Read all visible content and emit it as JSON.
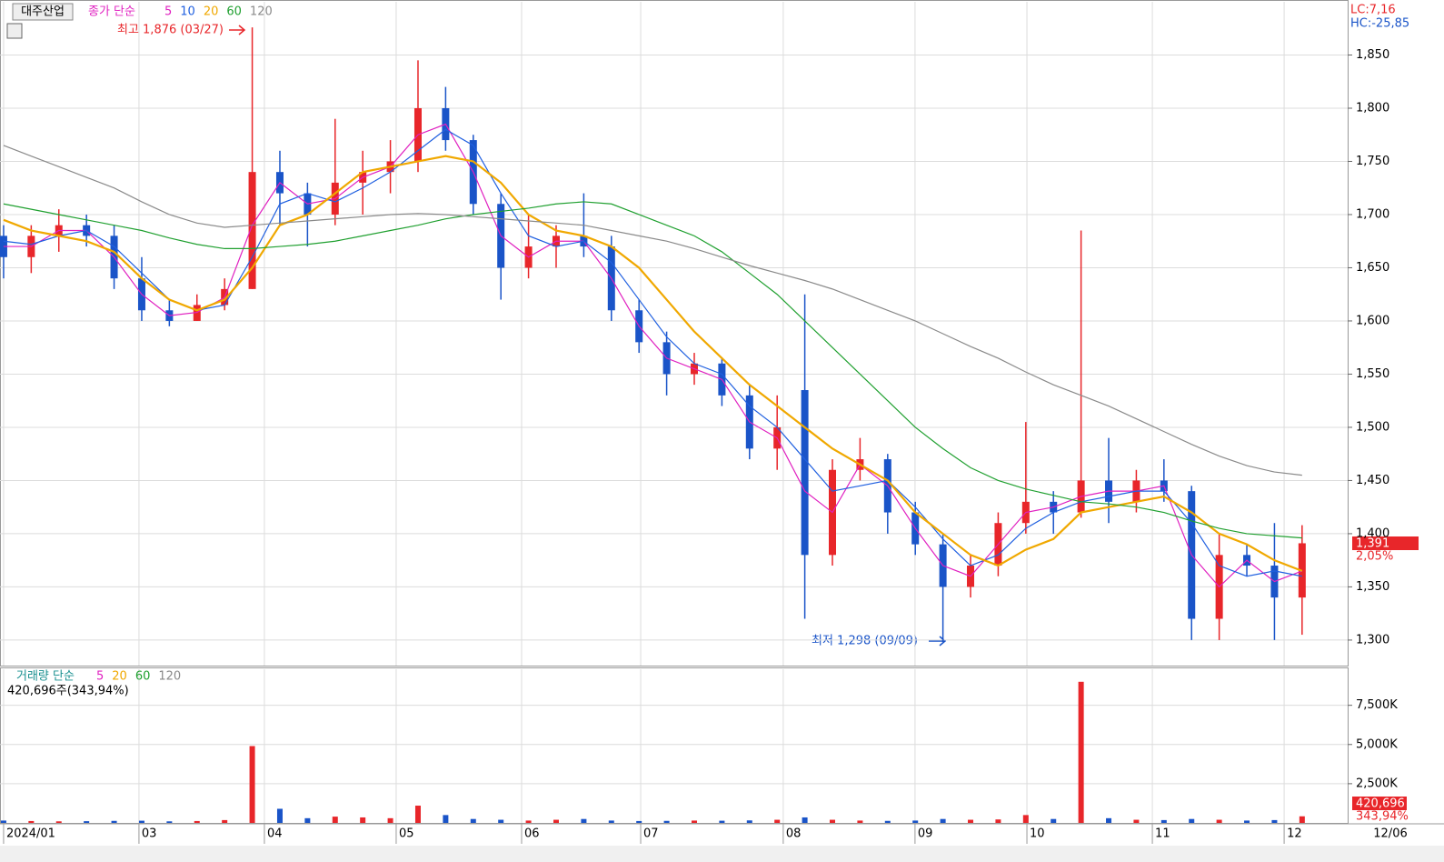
{
  "chart_data": [
    {
      "type": "candlestick",
      "title": "대주산업",
      "legend_prefix": "종가 단순",
      "high_label": "최고 1,876 (03/27)",
      "low_label": "최저 1,298 (09/09)",
      "lc_label": "LC:7,16",
      "hc_label": "HC:-25,85",
      "price_tag": "1,391",
      "change_tag": "2,05%",
      "end_date": "12/06",
      "up_color": "#e8262a",
      "down_color": "#1a54c8",
      "x": [
        0,
        1,
        2,
        3,
        4,
        5,
        6,
        7,
        8,
        9,
        10,
        11,
        12,
        13,
        14,
        15,
        16,
        17,
        18,
        19,
        20,
        21,
        22,
        23,
        24,
        25,
        26,
        27,
        28,
        29,
        30,
        31,
        32,
        33,
        34,
        35,
        36,
        37,
        38,
        39,
        40,
        41,
        42,
        43,
        44,
        45,
        46,
        47
      ],
      "open": [
        1680,
        1660,
        1680,
        1690,
        1680,
        1640,
        1610,
        1600,
        1615,
        1630,
        1740,
        1720,
        1700,
        1730,
        1740,
        1750,
        1800,
        1770,
        1710,
        1650,
        1670,
        1680,
        1670,
        1610,
        1580,
        1550,
        1560,
        1530,
        1480,
        1535,
        1380,
        1460,
        1470,
        1420,
        1390,
        1350,
        1370,
        1410,
        1430,
        1420,
        1450,
        1430,
        1450,
        1440,
        1320,
        1380,
        1370,
        1340
      ],
      "high": [
        1690,
        1690,
        1705,
        1700,
        1690,
        1660,
        1620,
        1625,
        1640,
        1876,
        1760,
        1730,
        1790,
        1760,
        1770,
        1845,
        1820,
        1775,
        1720,
        1700,
        1690,
        1720,
        1680,
        1620,
        1590,
        1570,
        1565,
        1540,
        1530,
        1625,
        1470,
        1490,
        1475,
        1430,
        1400,
        1380,
        1420,
        1505,
        1440,
        1685,
        1490,
        1460,
        1470,
        1445,
        1400,
        1390,
        1410,
        1408
      ],
      "low": [
        1640,
        1645,
        1665,
        1670,
        1630,
        1600,
        1595,
        1600,
        1610,
        1630,
        1690,
        1670,
        1690,
        1700,
        1720,
        1740,
        1760,
        1700,
        1620,
        1640,
        1650,
        1660,
        1600,
        1570,
        1530,
        1540,
        1520,
        1470,
        1460,
        1320,
        1370,
        1450,
        1400,
        1380,
        1298,
        1340,
        1360,
        1400,
        1400,
        1415,
        1410,
        1420,
        1430,
        1300,
        1300,
        1360,
        1300,
        1305
      ],
      "close": [
        1660,
        1680,
        1690,
        1680,
        1640,
        1610,
        1600,
        1615,
        1630,
        1740,
        1720,
        1700,
        1730,
        1740,
        1750,
        1800,
        1770,
        1710,
        1650,
        1670,
        1680,
        1670,
        1610,
        1580,
        1550,
        1560,
        1530,
        1480,
        1500,
        1380,
        1460,
        1470,
        1420,
        1390,
        1350,
        1370,
        1410,
        1430,
        1420,
        1450,
        1430,
        1450,
        1440,
        1320,
        1380,
        1370,
        1340,
        1391
      ],
      "series": [
        {
          "name": "5",
          "color": "#e020c0",
          "values": [
            1670,
            1670,
            1685,
            1685,
            1660,
            1625,
            1605,
            1608,
            1622,
            1690,
            1730,
            1710,
            1715,
            1735,
            1745,
            1775,
            1785,
            1740,
            1680,
            1660,
            1675,
            1675,
            1640,
            1595,
            1565,
            1555,
            1545,
            1505,
            1490,
            1440,
            1420,
            1465,
            1445,
            1405,
            1370,
            1360,
            1390,
            1420,
            1425,
            1435,
            1440,
            1440,
            1445,
            1380,
            1350,
            1375,
            1355,
            1365
          ]
        },
        {
          "name": "10",
          "color": "#2060e0",
          "values": [
            1675,
            1672,
            1680,
            1685,
            1670,
            1645,
            1620,
            1610,
            1615,
            1660,
            1710,
            1720,
            1712,
            1725,
            1740,
            1760,
            1780,
            1765,
            1720,
            1680,
            1670,
            1675,
            1655,
            1620,
            1585,
            1560,
            1550,
            1520,
            1500,
            1470,
            1440,
            1445,
            1450,
            1425,
            1395,
            1370,
            1380,
            1405,
            1420,
            1430,
            1435,
            1440,
            1440,
            1410,
            1370,
            1360,
            1365,
            1360
          ]
        },
        {
          "name": "20",
          "color": "#f0a800",
          "values": [
            1695,
            1685,
            1680,
            1675,
            1665,
            1640,
            1620,
            1610,
            1620,
            1650,
            1690,
            1700,
            1720,
            1740,
            1745,
            1750,
            1755,
            1750,
            1730,
            1700,
            1685,
            1680,
            1670,
            1650,
            1620,
            1590,
            1565,
            1540,
            1520,
            1500,
            1480,
            1465,
            1450,
            1420,
            1400,
            1380,
            1370,
            1385,
            1395,
            1420,
            1425,
            1430,
            1435,
            1420,
            1400,
            1390,
            1375,
            1365
          ]
        },
        {
          "name": "60",
          "color": "#20a030",
          "values": [
            1710,
            1705,
            1700,
            1695,
            1690,
            1685,
            1678,
            1672,
            1668,
            1668,
            1670,
            1672,
            1675,
            1680,
            1685,
            1690,
            1696,
            1700,
            1703,
            1706,
            1710,
            1712,
            1710,
            1700,
            1690,
            1680,
            1665,
            1645,
            1625,
            1600,
            1575,
            1550,
            1525,
            1500,
            1480,
            1462,
            1450,
            1442,
            1436,
            1430,
            1428,
            1425,
            1420,
            1412,
            1405,
            1400,
            1398,
            1396
          ]
        },
        {
          "name": "120",
          "color": "#8a8a8a",
          "values": [
            1765,
            1755,
            1745,
            1735,
            1725,
            1712,
            1700,
            1692,
            1688,
            1690,
            1692,
            1694,
            1696,
            1698,
            1700,
            1701,
            1700,
            1698,
            1696,
            1694,
            1692,
            1690,
            1685,
            1680,
            1675,
            1668,
            1660,
            1652,
            1645,
            1638,
            1630,
            1620,
            1610,
            1600,
            1588,
            1576,
            1565,
            1552,
            1540,
            1530,
            1520,
            1508,
            1496,
            1484,
            1473,
            1464,
            1458,
            1455
          ]
        }
      ],
      "xlim": [
        -0.13,
        48.65
      ],
      "xticks": [
        {
          "value": 0,
          "label": "2024/01"
        },
        {
          "value": 4.9,
          "label": "03"
        },
        {
          "value": 9.44,
          "label": "04"
        },
        {
          "value": 14.21,
          "label": "05"
        },
        {
          "value": 18.75,
          "label": "06"
        },
        {
          "value": 23.06,
          "label": "07"
        },
        {
          "value": 28.22,
          "label": "08"
        },
        {
          "value": 32.99,
          "label": "09"
        },
        {
          "value": 37.04,
          "label": "10"
        },
        {
          "value": 41.58,
          "label": "11"
        },
        {
          "value": 46.35,
          "label": "12"
        }
      ],
      "ylim": [
        1276,
        1900
      ],
      "yticks": [
        {
          "value": 1300,
          "label": "1,300"
        },
        {
          "value": 1350,
          "label": "1,350"
        },
        {
          "value": 1400,
          "label": "1,400"
        },
        {
          "value": 1450,
          "label": "1,450"
        },
        {
          "value": 1500,
          "label": "1,500"
        },
        {
          "value": 1550,
          "label": "1,550"
        },
        {
          "value": 1600,
          "label": "1,600"
        },
        {
          "value": 1650,
          "label": "1,650"
        },
        {
          "value": 1700,
          "label": "1,700"
        },
        {
          "value": 1750,
          "label": "1,750"
        },
        {
          "value": 1800,
          "label": "1,800"
        },
        {
          "value": 1850,
          "label": "1,850"
        }
      ],
      "grid": true
    },
    {
      "type": "bar",
      "legend_prefix": "거래량 단순",
      "volume_info": "420,696주(343,94%)",
      "volume_tag": "420,696",
      "ratio_tag": "343,94%",
      "ma_legend": [
        {
          "name": "5",
          "color": "#e020c0"
        },
        {
          "name": "20",
          "color": "#f0a800"
        },
        {
          "name": "60",
          "color": "#20a030"
        },
        {
          "name": "120",
          "color": "#8a8a8a"
        }
      ],
      "x": [
        0,
        1,
        2,
        3,
        4,
        5,
        6,
        7,
        8,
        9,
        10,
        11,
        12,
        13,
        14,
        15,
        16,
        17,
        18,
        19,
        20,
        21,
        22,
        23,
        24,
        25,
        26,
        27,
        28,
        29,
        30,
        31,
        32,
        33,
        34,
        35,
        36,
        37,
        38,
        39,
        40,
        41,
        42,
        43,
        44,
        45,
        46,
        47
      ],
      "values": [
        150,
        120,
        100,
        110,
        130,
        140,
        100,
        120,
        180,
        4900,
        900,
        300,
        400,
        350,
        300,
        1100,
        500,
        250,
        200,
        150,
        200,
        250,
        150,
        120,
        130,
        150,
        140,
        160,
        200,
        350,
        200,
        150,
        130,
        150,
        250,
        200,
        220,
        500,
        250,
        9000,
        300,
        200,
        180,
        250,
        200,
        150,
        180,
        420.696
      ],
      "ylim": [
        0,
        9800
      ],
      "yticks": [
        {
          "value": 2500,
          "label": "2,500K"
        },
        {
          "value": 5000,
          "label": "5,000K"
        },
        {
          "value": 7500,
          "label": "7,500K"
        }
      ],
      "grid": true
    }
  ]
}
